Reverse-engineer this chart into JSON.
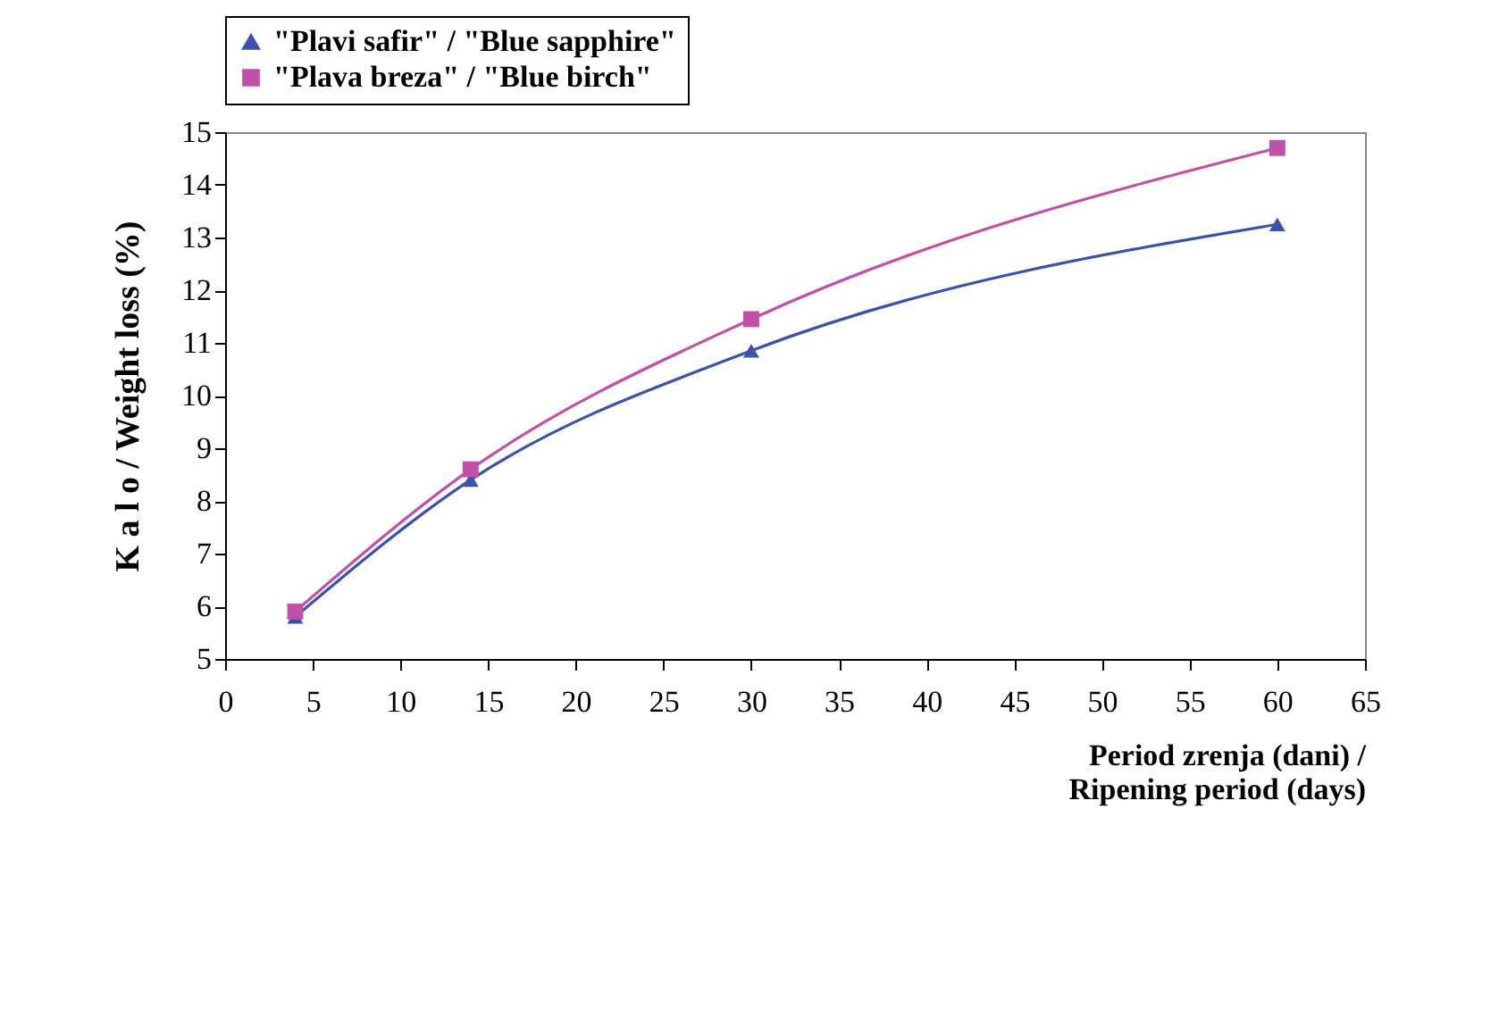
{
  "chart_data": {
    "type": "line",
    "xlabel": "Period zrenja (dani) /\nRipening period (days)",
    "ylabel": "K a l o  / Weight loss  (%)",
    "x": [
      4,
      14,
      30,
      60
    ],
    "series": [
      {
        "name": "\"Plavi safir\" / \"Blue sapphire\"",
        "color": "#3a52a8",
        "marker": "triangle",
        "values": [
          5.8,
          8.4,
          10.85,
          13.25
        ]
      },
      {
        "name": "\"Plava breza\" / \"Blue birch\"",
        "color": "#c050a8",
        "marker": "square",
        "values": [
          5.9,
          8.6,
          11.45,
          14.7
        ]
      }
    ],
    "xlim": [
      0,
      65
    ],
    "xticks": [
      0,
      5,
      10,
      15,
      20,
      25,
      30,
      35,
      40,
      45,
      50,
      55,
      60,
      65
    ],
    "ylim": [
      5,
      15
    ],
    "yticks": [
      5,
      6,
      7,
      8,
      9,
      10,
      11,
      12,
      13,
      14,
      15
    ],
    "grid": false,
    "legend": "top"
  }
}
